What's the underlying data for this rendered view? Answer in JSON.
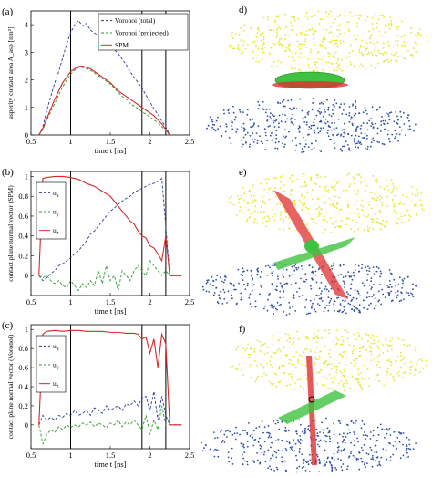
{
  "colors": {
    "voronoi_total": "#2b3a9a",
    "voronoi_projected": "#2a9d2a",
    "spm": "#d62828",
    "atoms_top": "#e6e62e",
    "atoms_bottom": "#2e4fa8",
    "contact_green": "#3fc23f",
    "contact_red": "#e03030"
  },
  "panels": {
    "a": "(a)",
    "b": "(b)",
    "c": "(c)",
    "d": "d)",
    "e": "e)",
    "f": "f)"
  },
  "chart_data": [
    {
      "type": "line",
      "panel": "(a)",
      "xlabel": "time  t [ns]",
      "ylabel": "asperity contact area A_asp [nm²]",
      "xlim": [
        0.5,
        2.5
      ],
      "ylim": [
        0,
        4.5
      ],
      "xticks": [
        "0.5",
        "1",
        "1.5",
        "2",
        "2.5"
      ],
      "yticks": [
        "0",
        "1",
        "2",
        "3",
        "4"
      ],
      "vlines": [
        1.0,
        1.9,
        2.2
      ],
      "legend": {
        "position": "top-right",
        "entries": [
          "Voronoi (total)",
          "Voronoi (projected)",
          "SPM"
        ]
      },
      "series": [
        {
          "name": "Voronoi (total)",
          "style": "dashed",
          "color": "#2b3a9a",
          "x": [
            0.6,
            0.65,
            0.7,
            0.75,
            0.8,
            0.85,
            0.9,
            0.95,
            1.0,
            1.05,
            1.1,
            1.15,
            1.2,
            1.25,
            1.3,
            1.35,
            1.4,
            1.45,
            1.5,
            1.55,
            1.6,
            1.65,
            1.7,
            1.75,
            1.8,
            1.85,
            1.9,
            1.95,
            2.0,
            2.05,
            2.1,
            2.15,
            2.2,
            2.25
          ],
          "y": [
            0.0,
            0.3,
            0.9,
            1.4,
            1.9,
            2.3,
            2.8,
            3.3,
            3.7,
            4.0,
            4.15,
            3.95,
            4.05,
            3.8,
            3.7,
            3.6,
            3.5,
            3.4,
            3.25,
            3.1,
            2.95,
            2.75,
            2.55,
            2.3,
            2.1,
            1.9,
            1.7,
            1.45,
            1.2,
            0.95,
            0.75,
            0.5,
            0.3,
            0.0
          ]
        },
        {
          "name": "Voronoi (projected)",
          "style": "dashed",
          "color": "#2a9d2a",
          "x": [
            0.6,
            0.65,
            0.7,
            0.75,
            0.8,
            0.85,
            0.9,
            0.95,
            1.0,
            1.05,
            1.1,
            1.15,
            1.2,
            1.25,
            1.3,
            1.35,
            1.4,
            1.45,
            1.5,
            1.55,
            1.6,
            1.65,
            1.7,
            1.75,
            1.8,
            1.85,
            1.9,
            1.95,
            2.0,
            2.05,
            2.1,
            2.15,
            2.2,
            2.25
          ],
          "y": [
            0.0,
            0.2,
            0.55,
            0.85,
            1.15,
            1.45,
            1.75,
            2.0,
            2.2,
            2.35,
            2.45,
            2.45,
            2.4,
            2.35,
            2.25,
            2.15,
            2.05,
            1.95,
            1.85,
            1.7,
            1.55,
            1.4,
            1.3,
            1.15,
            1.05,
            0.95,
            0.85,
            0.75,
            0.65,
            0.55,
            0.45,
            0.3,
            0.15,
            0.0
          ]
        },
        {
          "name": "SPM",
          "style": "solid",
          "color": "#d62828",
          "x": [
            0.6,
            0.65,
            0.7,
            0.75,
            0.8,
            0.85,
            0.9,
            0.95,
            1.0,
            1.05,
            1.1,
            1.15,
            1.2,
            1.25,
            1.3,
            1.35,
            1.4,
            1.45,
            1.5,
            1.55,
            1.6,
            1.65,
            1.7,
            1.75,
            1.8,
            1.85,
            1.9,
            1.95,
            2.0,
            2.05,
            2.1,
            2.15,
            2.2,
            2.25
          ],
          "y": [
            0.0,
            0.25,
            0.6,
            0.95,
            1.3,
            1.6,
            1.9,
            2.1,
            2.3,
            2.4,
            2.48,
            2.5,
            2.45,
            2.4,
            2.3,
            2.2,
            2.1,
            2.0,
            1.9,
            1.75,
            1.6,
            1.5,
            1.4,
            1.3,
            1.2,
            1.1,
            1.0,
            0.9,
            0.8,
            0.7,
            0.55,
            0.4,
            0.2,
            0.0
          ]
        }
      ]
    },
    {
      "type": "line",
      "panel": "(b)",
      "xlabel": "time  t [ns]",
      "ylabel": "contact plane normal vector (SPM)",
      "xlim": [
        0.5,
        2.5
      ],
      "ylim": [
        -0.2,
        1.05
      ],
      "xticks": [
        "0.5",
        "1",
        "1.5",
        "2",
        "2.5"
      ],
      "yticks": [
        "0",
        "0.2",
        "0.4",
        "0.6",
        "0.8",
        "1"
      ],
      "vlines": [
        1.0,
        1.9,
        2.2
      ],
      "legend": {
        "position": "top-left",
        "entries": [
          "u_x",
          "u_y",
          "u_z"
        ]
      },
      "series": [
        {
          "name": "u_x",
          "style": "dashed",
          "color": "#2b3a9a",
          "x": [
            0.6,
            0.65,
            0.7,
            0.75,
            0.8,
            0.85,
            0.9,
            0.95,
            1.0,
            1.05,
            1.1,
            1.15,
            1.2,
            1.25,
            1.3,
            1.35,
            1.4,
            1.45,
            1.5,
            1.55,
            1.6,
            1.65,
            1.7,
            1.75,
            1.8,
            1.85,
            1.9,
            1.95,
            2.0,
            2.05,
            2.1,
            2.15,
            2.2,
            2.25,
            2.4
          ],
          "y": [
            0.0,
            -0.05,
            -0.02,
            0.02,
            0.05,
            0.1,
            0.12,
            0.15,
            0.18,
            0.22,
            0.25,
            0.3,
            0.35,
            0.42,
            0.45,
            0.5,
            0.55,
            0.6,
            0.65,
            0.68,
            0.72,
            0.75,
            0.78,
            0.8,
            0.84,
            0.86,
            0.88,
            0.9,
            0.92,
            0.93,
            0.95,
            0.98,
            0.5,
            0.0,
            0.0
          ]
        },
        {
          "name": "u_y",
          "style": "dashed",
          "color": "#2a9d2a",
          "x": [
            0.6,
            0.65,
            0.7,
            0.75,
            0.8,
            0.85,
            0.9,
            0.95,
            1.0,
            1.05,
            1.1,
            1.15,
            1.2,
            1.25,
            1.3,
            1.35,
            1.4,
            1.45,
            1.5,
            1.55,
            1.6,
            1.65,
            1.7,
            1.75,
            1.8,
            1.85,
            1.9,
            1.95,
            2.0,
            2.05,
            2.1,
            2.15,
            2.2,
            2.25,
            2.4
          ],
          "y": [
            0.0,
            -0.02,
            0.0,
            -0.05,
            -0.08,
            -0.05,
            -0.1,
            -0.12,
            -0.05,
            -0.1,
            -0.15,
            -0.08,
            -0.12,
            -0.05,
            -0.1,
            0.05,
            -0.08,
            0.1,
            -0.05,
            0.0,
            -0.15,
            0.05,
            0.0,
            -0.05,
            0.05,
            0.1,
            0.05,
            0.0,
            0.15,
            0.1,
            0.05,
            0.0,
            0.05,
            0.0,
            0.0
          ]
        },
        {
          "name": "u_z",
          "style": "solid",
          "color": "#d62828",
          "x": [
            0.6,
            0.65,
            0.7,
            0.8,
            0.9,
            1.0,
            1.1,
            1.2,
            1.3,
            1.4,
            1.5,
            1.55,
            1.6,
            1.65,
            1.7,
            1.75,
            1.8,
            1.85,
            1.9,
            1.95,
            2.0,
            2.05,
            2.1,
            2.15,
            2.2,
            2.25,
            2.4
          ],
          "y": [
            0.0,
            0.98,
            0.99,
            1.0,
            1.0,
            0.99,
            0.97,
            0.93,
            0.9,
            0.85,
            0.8,
            0.75,
            0.7,
            0.65,
            0.6,
            0.55,
            0.52,
            0.45,
            0.4,
            0.38,
            0.3,
            0.28,
            0.22,
            0.15,
            0.4,
            0.0,
            0.0
          ]
        }
      ]
    },
    {
      "type": "line",
      "panel": "(c)",
      "xlabel": "time  t [ns]",
      "ylabel": "contact plane normal vector (Voronoi)",
      "xlim": [
        0.5,
        2.5
      ],
      "ylim": [
        -0.25,
        1.05
      ],
      "xticks": [
        "0.5",
        "1",
        "1.5",
        "2",
        "2.5"
      ],
      "yticks": [
        "0",
        "0.2",
        "0.4",
        "0.6",
        "0.8",
        "1"
      ],
      "vlines": [
        1.0,
        1.9,
        2.2
      ],
      "legend": {
        "position": "top-left",
        "entries": [
          "u_x",
          "u_y",
          "u_z"
        ]
      },
      "series": [
        {
          "name": "u_x",
          "style": "dashed",
          "color": "#2b3a9a",
          "x": [
            0.6,
            0.65,
            0.7,
            0.75,
            0.8,
            0.85,
            0.9,
            0.95,
            1.0,
            1.05,
            1.1,
            1.15,
            1.2,
            1.25,
            1.3,
            1.35,
            1.4,
            1.45,
            1.5,
            1.55,
            1.6,
            1.65,
            1.7,
            1.75,
            1.8,
            1.85,
            1.9,
            1.95,
            2.0,
            2.05,
            2.1,
            2.15,
            2.2,
            2.25,
            2.4
          ],
          "y": [
            0.0,
            0.1,
            0.05,
            0.08,
            0.05,
            0.1,
            0.08,
            0.12,
            0.1,
            0.15,
            0.1,
            0.12,
            0.15,
            0.1,
            0.18,
            0.15,
            0.12,
            0.2,
            0.15,
            0.18,
            0.2,
            0.15,
            0.22,
            0.2,
            0.25,
            0.2,
            0.28,
            0.3,
            0.15,
            0.35,
            0.05,
            0.3,
            0.1,
            0.0,
            0.0
          ]
        },
        {
          "name": "u_y",
          "style": "dashed",
          "color": "#2a9d2a",
          "x": [
            0.6,
            0.65,
            0.7,
            0.75,
            0.8,
            0.85,
            0.9,
            0.95,
            1.0,
            1.05,
            1.1,
            1.15,
            1.2,
            1.25,
            1.3,
            1.35,
            1.4,
            1.45,
            1.5,
            1.55,
            1.6,
            1.65,
            1.7,
            1.75,
            1.8,
            1.85,
            1.9,
            1.95,
            2.0,
            2.05,
            2.1,
            2.15,
            2.2,
            2.25,
            2.4
          ],
          "y": [
            0.0,
            -0.2,
            -0.1,
            -0.05,
            -0.08,
            -0.02,
            -0.05,
            0.0,
            -0.03,
            0.0,
            -0.02,
            0.02,
            0.0,
            0.03,
            -0.02,
            0.02,
            0.0,
            -0.03,
            0.02,
            0.0,
            0.05,
            -0.02,
            0.03,
            0.0,
            0.05,
            0.0,
            -0.05,
            0.1,
            -0.1,
            0.05,
            -0.05,
            0.2,
            0.0,
            0.0,
            0.0
          ]
        },
        {
          "name": "u_z",
          "style": "solid",
          "color": "#d62828",
          "x": [
            0.6,
            0.65,
            0.7,
            0.8,
            0.9,
            1.0,
            1.1,
            1.2,
            1.3,
            1.4,
            1.5,
            1.6,
            1.7,
            1.8,
            1.85,
            1.9,
            1.95,
            2.0,
            2.05,
            2.1,
            2.15,
            2.2,
            2.25,
            2.4
          ],
          "y": [
            0.0,
            0.95,
            0.98,
            0.99,
            0.98,
            0.99,
            0.99,
            0.98,
            0.98,
            0.98,
            0.97,
            0.97,
            0.96,
            0.96,
            0.95,
            0.9,
            0.92,
            0.75,
            0.9,
            0.6,
            0.95,
            0.85,
            0.0,
            0.0
          ]
        }
      ]
    }
  ]
}
